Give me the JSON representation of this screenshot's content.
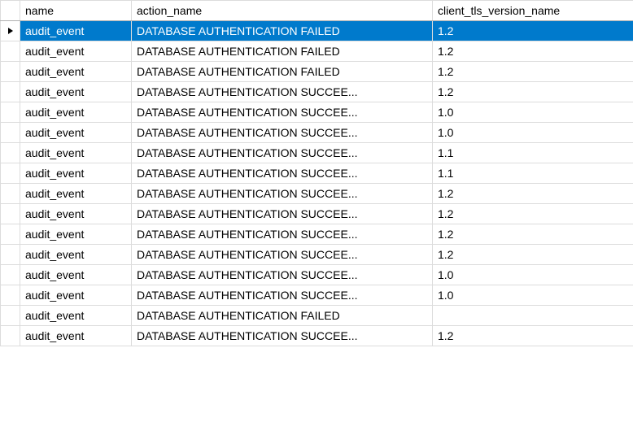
{
  "table": {
    "columns": {
      "name": "name",
      "action_name": "action_name",
      "client_tls_version_name": "client_tls_version_name"
    },
    "selection_color": "#007acc",
    "selected_row_index": 0,
    "rows": [
      {
        "name": "audit_event",
        "action": "DATABASE AUTHENTICATION FAILED",
        "tls": "1.2"
      },
      {
        "name": "audit_event",
        "action": "DATABASE AUTHENTICATION FAILED",
        "tls": "1.2"
      },
      {
        "name": "audit_event",
        "action": "DATABASE AUTHENTICATION FAILED",
        "tls": "1.2"
      },
      {
        "name": "audit_event",
        "action": "DATABASE AUTHENTICATION SUCCEE...",
        "tls": "1.2"
      },
      {
        "name": "audit_event",
        "action": "DATABASE AUTHENTICATION SUCCEE...",
        "tls": "1.0"
      },
      {
        "name": "audit_event",
        "action": "DATABASE AUTHENTICATION SUCCEE...",
        "tls": "1.0"
      },
      {
        "name": "audit_event",
        "action": "DATABASE AUTHENTICATION SUCCEE...",
        "tls": "1.1"
      },
      {
        "name": "audit_event",
        "action": "DATABASE AUTHENTICATION SUCCEE...",
        "tls": "1.1"
      },
      {
        "name": "audit_event",
        "action": "DATABASE AUTHENTICATION SUCCEE...",
        "tls": "1.2"
      },
      {
        "name": "audit_event",
        "action": "DATABASE AUTHENTICATION SUCCEE...",
        "tls": "1.2"
      },
      {
        "name": "audit_event",
        "action": "DATABASE AUTHENTICATION SUCCEE...",
        "tls": "1.2"
      },
      {
        "name": "audit_event",
        "action": "DATABASE AUTHENTICATION SUCCEE...",
        "tls": "1.2"
      },
      {
        "name": "audit_event",
        "action": "DATABASE AUTHENTICATION SUCCEE...",
        "tls": "1.0"
      },
      {
        "name": "audit_event",
        "action": "DATABASE AUTHENTICATION SUCCEE...",
        "tls": "1.0"
      },
      {
        "name": "audit_event",
        "action": "DATABASE AUTHENTICATION FAILED",
        "tls": ""
      },
      {
        "name": "audit_event",
        "action": "DATABASE AUTHENTICATION SUCCEE...",
        "tls": "1.2"
      }
    ]
  }
}
